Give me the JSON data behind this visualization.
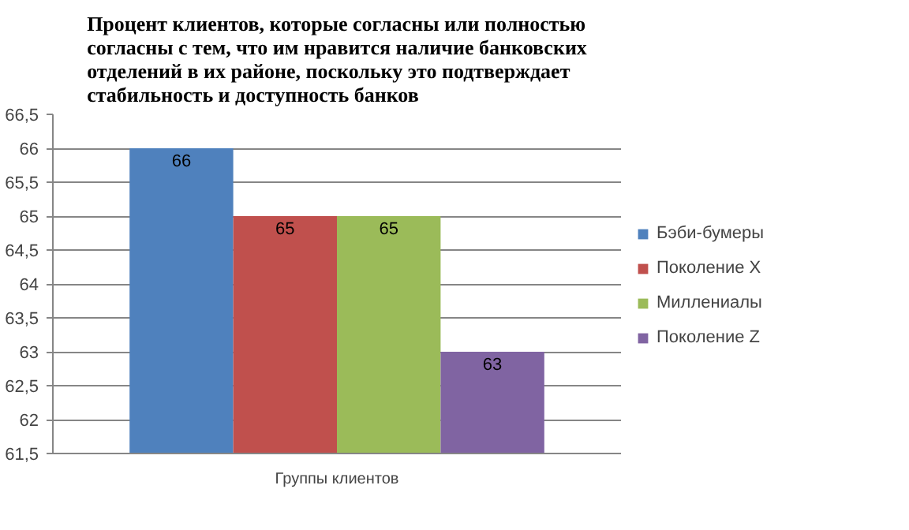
{
  "chart_data": {
    "type": "bar",
    "title": "Процент клиентов, которые согласны или полностью согласны с тем, что им нравится наличие банковских отделений в их районе, поскольку это подтверждает стабильность и доступность банков",
    "categories": [
      "Группы клиентов"
    ],
    "series": [
      {
        "name": "Бэби-бумеры",
        "color": "#4f81bd",
        "values": [
          66
        ]
      },
      {
        "name": "Поколение X",
        "color": "#c0504d",
        "values": [
          65
        ]
      },
      {
        "name": "Миллениалы",
        "color": "#9bbb59",
        "values": [
          65
        ]
      },
      {
        "name": "Поколение Z",
        "color": "#8064a2",
        "values": [
          63
        ]
      }
    ],
    "ylim": [
      61.5,
      66.5
    ],
    "yticks": [
      {
        "value": 61.5,
        "label": "61,5"
      },
      62,
      {
        "value": 62.5,
        "label": "62,5"
      },
      63,
      {
        "value": 63.5,
        "label": "63,5"
      },
      64,
      {
        "value": 64.5,
        "label": "64,5"
      },
      65,
      {
        "value": 65.5,
        "label": "65,5"
      },
      66,
      {
        "value": 66.5,
        "label": "66,5"
      }
    ],
    "grid": "y",
    "legend": "right",
    "data_labels": true
  }
}
